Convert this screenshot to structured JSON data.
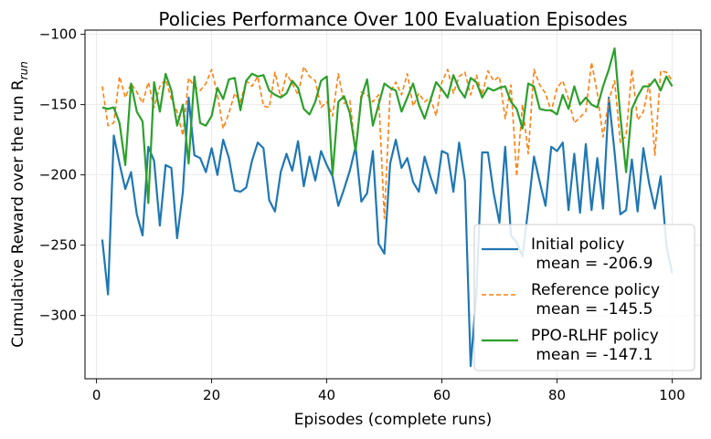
{
  "chart_data": {
    "type": "line",
    "title": "Policies Performance Over 100 Evaluation Episodes",
    "xlabel": "Episodes (complete runs)",
    "ylabel_main": "Cumulative Reward over the run R",
    "ylabel_sub": "run",
    "xlim": [
      -2,
      105
    ],
    "ylim": [
      -345,
      -97
    ],
    "xticks": [
      0,
      20,
      40,
      60,
      80,
      100
    ],
    "yticks": [
      -100,
      -150,
      -200,
      -250,
      -300
    ],
    "grid": true,
    "legend_placement": "lower-right",
    "series": [
      {
        "name": "Initial policy\n mean = -206.9",
        "color": "#1f77b4",
        "style": "solid",
        "x": [
          1,
          2,
          3,
          4,
          5,
          6,
          7,
          8,
          9,
          10,
          11,
          12,
          13,
          14,
          15,
          16,
          17,
          18,
          19,
          20,
          21,
          22,
          23,
          24,
          25,
          26,
          27,
          28,
          29,
          30,
          31,
          32,
          33,
          34,
          35,
          36,
          37,
          38,
          39,
          40,
          41,
          42,
          43,
          44,
          45,
          46,
          47,
          48,
          49,
          50,
          51,
          52,
          53,
          54,
          55,
          56,
          57,
          58,
          59,
          60,
          61,
          62,
          63,
          64,
          65,
          66,
          67,
          68,
          69,
          70,
          71,
          72,
          73,
          74,
          75,
          76,
          77,
          78,
          79,
          80,
          81,
          82,
          83,
          84,
          85,
          86,
          87,
          88,
          89,
          90,
          91,
          92,
          93,
          94,
          95,
          96,
          97,
          98,
          99,
          100
        ],
        "values": [
          -246,
          -285,
          -172,
          -192,
          -210,
          -198,
          -228,
          -243,
          -180,
          -190,
          -236,
          -193,
          -195,
          -245,
          -212,
          -145,
          -186,
          -188,
          -198,
          -181,
          -200,
          -175,
          -188,
          -211,
          -212,
          -209,
          -190,
          -177,
          -181,
          -218,
          -226,
          -198,
          -185,
          -197,
          -176,
          -208,
          -187,
          -204,
          -183,
          -193,
          -201,
          -222,
          -210,
          -197,
          -180,
          -219,
          -213,
          -183,
          -249,
          -256,
          -192,
          -175,
          -195,
          -188,
          -205,
          -212,
          -187,
          -201,
          -213,
          -183,
          -185,
          -212,
          -177,
          -204,
          -336,
          -284,
          -184,
          -184,
          -213,
          -234,
          -180,
          -243,
          -248,
          -258,
          -224,
          -187,
          -205,
          -222,
          -180,
          -183,
          -177,
          -225,
          -185,
          -227,
          -178,
          -225,
          -188,
          -224,
          -145,
          -184,
          -228,
          -225,
          -189,
          -226,
          -181,
          -206,
          -224,
          -201,
          -250,
          -270
        ]
      },
      {
        "name": "Reference policy\n mean = -145.5",
        "color": "#ff7f0e",
        "style": "dashed",
        "x": [
          1,
          2,
          3,
          4,
          5,
          6,
          7,
          8,
          9,
          10,
          11,
          12,
          13,
          14,
          15,
          16,
          17,
          18,
          19,
          20,
          21,
          22,
          23,
          24,
          25,
          26,
          27,
          28,
          29,
          30,
          31,
          32,
          33,
          34,
          35,
          36,
          37,
          38,
          39,
          40,
          41,
          42,
          43,
          44,
          45,
          46,
          47,
          48,
          49,
          50,
          51,
          52,
          53,
          54,
          55,
          56,
          57,
          58,
          59,
          60,
          61,
          62,
          63,
          64,
          65,
          66,
          67,
          68,
          69,
          70,
          71,
          72,
          73,
          74,
          75,
          76,
          77,
          78,
          79,
          80,
          81,
          82,
          83,
          84,
          85,
          86,
          87,
          88,
          89,
          90,
          91,
          92,
          93,
          94,
          95,
          96,
          97,
          98,
          99,
          100
        ],
        "values": [
          -137,
          -165,
          -163,
          -130,
          -145,
          -135,
          -141,
          -149,
          -134,
          -152,
          -137,
          -132,
          -146,
          -155,
          -172,
          -131,
          -137,
          -140,
          -135,
          -125,
          -143,
          -167,
          -156,
          -142,
          -148,
          -133,
          -137,
          -130,
          -151,
          -152,
          -127,
          -145,
          -128,
          -135,
          -143,
          -123,
          -130,
          -133,
          -152,
          -148,
          -158,
          -128,
          -149,
          -147,
          -183,
          -141,
          -143,
          -148,
          -143,
          -231,
          -141,
          -134,
          -143,
          -128,
          -151,
          -142,
          -148,
          -145,
          -158,
          -134,
          -125,
          -142,
          -130,
          -127,
          -143,
          -129,
          -143,
          -126,
          -133,
          -130,
          -160,
          -136,
          -201,
          -150,
          -185,
          -125,
          -136,
          -142,
          -155,
          -138,
          -133,
          -146,
          -163,
          -159,
          -155,
          -120,
          -142,
          -173,
          -147,
          -133,
          -177,
          -172,
          -125,
          -161,
          -155,
          -135,
          -186,
          -126,
          -127,
          -133
        ]
      },
      {
        "name": "PPO-RLHF policy\n mean = -147.1",
        "color": "#2ca02c",
        "style": "solid",
        "x": [
          1,
          2,
          3,
          4,
          5,
          6,
          7,
          8,
          9,
          10,
          11,
          12,
          13,
          14,
          15,
          16,
          17,
          18,
          19,
          20,
          21,
          22,
          23,
          24,
          25,
          26,
          27,
          28,
          29,
          30,
          31,
          32,
          33,
          34,
          35,
          36,
          37,
          38,
          39,
          40,
          41,
          42,
          43,
          44,
          45,
          46,
          47,
          48,
          49,
          50,
          51,
          52,
          53,
          54,
          55,
          56,
          57,
          58,
          59,
          60,
          61,
          62,
          63,
          64,
          65,
          66,
          67,
          68,
          69,
          70,
          71,
          72,
          73,
          74,
          75,
          76,
          77,
          78,
          79,
          80,
          81,
          82,
          83,
          84,
          85,
          86,
          87,
          88,
          89,
          90,
          91,
          92,
          93,
          94,
          95,
          96,
          97,
          98,
          99,
          100
        ],
        "values": [
          -152,
          -153,
          -152,
          -163,
          -193,
          -135,
          -155,
          -162,
          -220,
          -134,
          -155,
          -128,
          -140,
          -165,
          -150,
          -192,
          -130,
          -163,
          -165,
          -158,
          -138,
          -146,
          -132,
          -131,
          -154,
          -133,
          -128,
          -130,
          -129,
          -140,
          -143,
          -145,
          -142,
          -133,
          -138,
          -153,
          -157,
          -148,
          -133,
          -130,
          -200,
          -148,
          -144,
          -156,
          -183,
          -145,
          -132,
          -165,
          -150,
          -135,
          -138,
          -140,
          -155,
          -145,
          -135,
          -150,
          -160,
          -147,
          -134,
          -139,
          -145,
          -129,
          -139,
          -145,
          -131,
          -134,
          -145,
          -138,
          -140,
          -138,
          -137,
          -148,
          -153,
          -167,
          -135,
          -137,
          -153,
          -154,
          -154,
          -157,
          -143,
          -153,
          -137,
          -150,
          -145,
          -150,
          -152,
          -137,
          -125,
          -110,
          -158,
          -198,
          -153,
          -144,
          -137,
          -137,
          -132,
          -140,
          -130,
          -137
        ]
      }
    ]
  }
}
